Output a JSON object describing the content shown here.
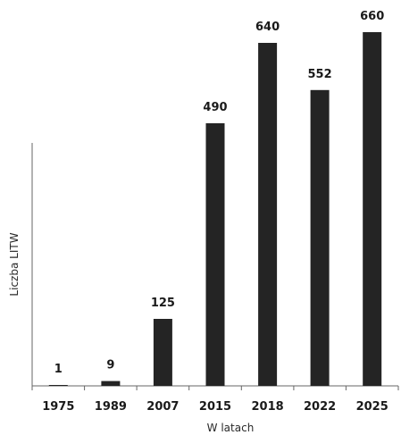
{
  "chart_data": {
    "type": "bar",
    "categories": [
      "1975",
      "1989",
      "2007",
      "2015",
      "2018",
      "2022",
      "2025"
    ],
    "values": [
      1,
      9,
      125,
      490,
      640,
      552,
      660
    ],
    "data_labels": [
      "1",
      "9",
      "125",
      "490",
      "640",
      "552",
      "660"
    ],
    "title": "",
    "xlabel": "W latach",
    "ylabel": "Liczba LITW",
    "ylim": [
      0,
      680
    ],
    "grid": false,
    "legend": "none",
    "colors": {
      "bar": "#242424",
      "axis": "#666666",
      "text": "#1a1a1a"
    }
  }
}
